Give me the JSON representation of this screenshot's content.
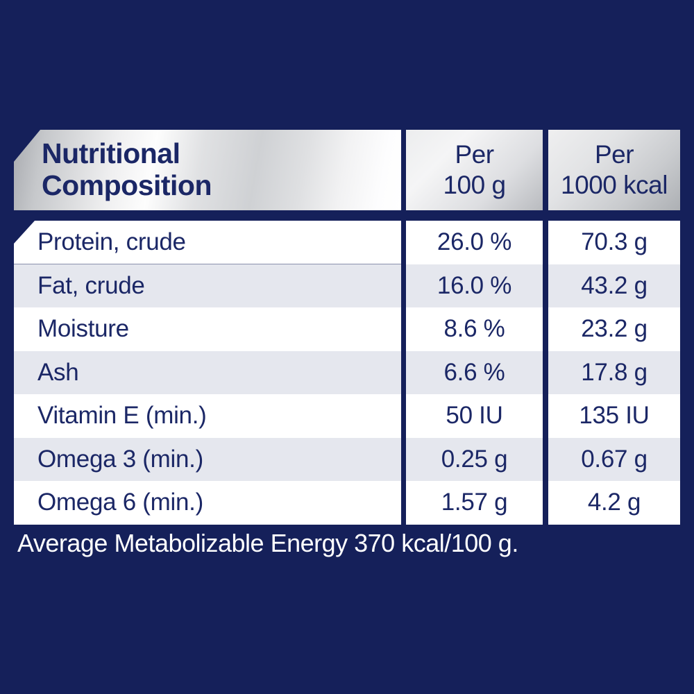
{
  "colors": {
    "bg": "#15205A",
    "navy": "#1B2766",
    "row_alt": "#E5E7EE",
    "row_white": "#FFFFFF",
    "footer": "#FFFFFF"
  },
  "table": {
    "title": "Nutritional Composition",
    "col_headers": [
      {
        "line1": "Per",
        "line2": "100 g"
      },
      {
        "line1": "Per",
        "line2": "1000 kcal"
      }
    ],
    "rows": [
      {
        "label": "Protein, crude",
        "per_100g": "26.0 %",
        "per_1000kcal": "70.3 g"
      },
      {
        "label": "Fat, crude",
        "per_100g": "16.0 %",
        "per_1000kcal": "43.2 g"
      },
      {
        "label": "Moisture",
        "per_100g": "8.6 %",
        "per_1000kcal": "23.2 g"
      },
      {
        "label": "Ash",
        "per_100g": "6.6 %",
        "per_1000kcal": "17.8 g"
      },
      {
        "label": "Vitamin E (min.)",
        "per_100g": "50 IU",
        "per_1000kcal": "135 IU"
      },
      {
        "label": "Omega 3 (min.)",
        "per_100g": "0.25 g",
        "per_1000kcal": "0.67 g"
      },
      {
        "label": "Omega 6 (min.)",
        "per_100g": "1.57 g",
        "per_1000kcal": "4.2 g"
      }
    ]
  },
  "footer": {
    "text": "Average Metabolizable Energy 370 kcal/100 g."
  }
}
